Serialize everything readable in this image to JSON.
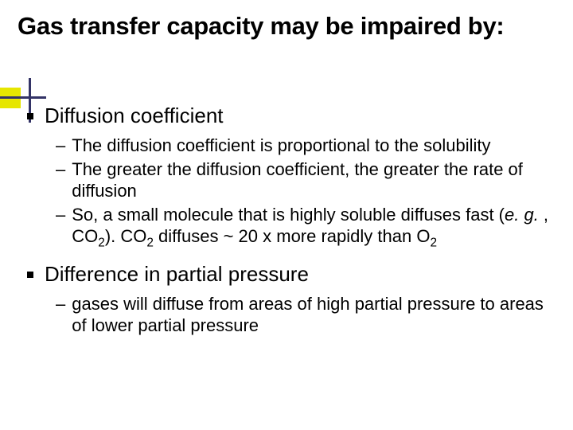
{
  "colors": {
    "accent_square": "#e6e600",
    "cross": "#333366",
    "background": "#ffffff",
    "text": "#000000"
  },
  "typography": {
    "title_fontsize": 31,
    "title_weight": "bold",
    "b1_fontsize": 26,
    "b2_fontsize": 22,
    "font_family": "Verdana"
  },
  "title": "Gas transfer capacity may be impaired by:",
  "b1a": "Diffusion coefficient",
  "b1a_sub1": "The diffusion coefficient is proportional to the solubility",
  "b1a_sub2": "The greater the diffusion coefficient, the greater the rate of diffusion",
  "b1a_sub3_pre": "So, a small molecule that is highly soluble diffuses fast (",
  "b1a_sub3_eg": "e. g. ",
  "b1a_sub3_mid": ", CO",
  "b1a_sub3_two": "2",
  "b1a_sub3_close": ").  CO",
  "b1a_sub3_two2": "2",
  "b1a_sub3_diff": " diffuses ~ 20 x more rapidly than O",
  "b1a_sub3_two3": "2",
  "b1b": "Difference in partial pressure",
  "b1b_sub1": "gases will diffuse from areas of high partial pressure to areas of lower partial pressure"
}
